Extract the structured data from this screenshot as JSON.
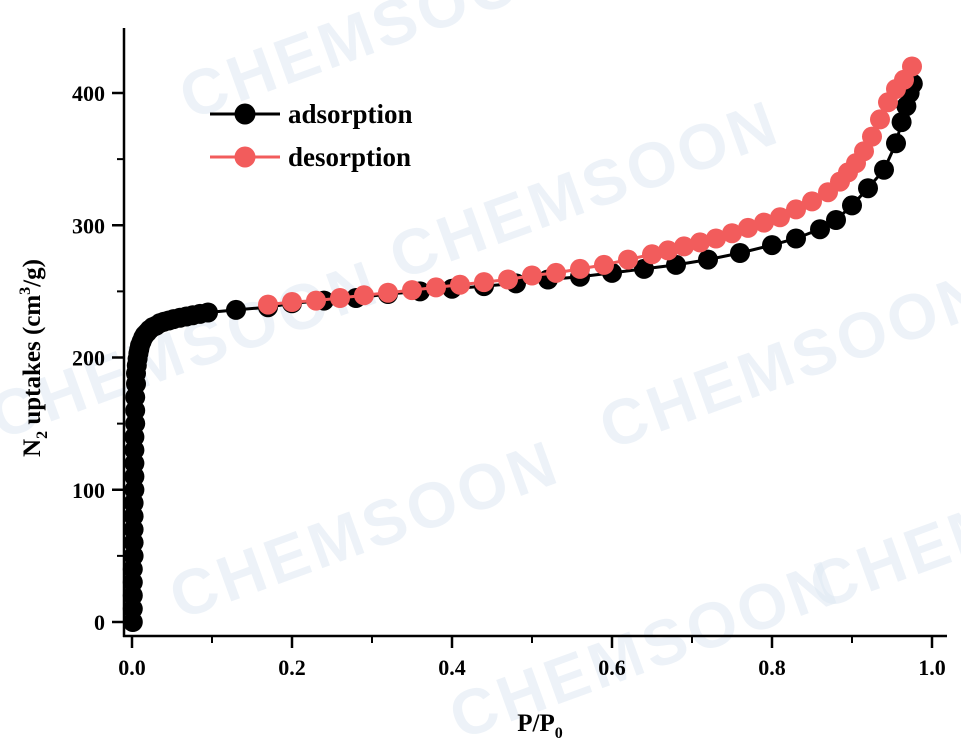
{
  "watermark": {
    "text": "CHEMSOON"
  },
  "chart_data": {
    "type": "scatter",
    "xlabel_main": "P/P",
    "xlabel_sub": "0",
    "ylabel_main": "N",
    "ylabel_sub": "2",
    "ylabel_mid": " uptakes (cm",
    "ylabel_sup": "3",
    "ylabel_end": "/g)",
    "xlim": [
      0.0,
      1.0
    ],
    "ylim": [
      0,
      450
    ],
    "xticks": [
      "0.0",
      "0.2",
      "0.4",
      "0.6",
      "0.8",
      "1.0"
    ],
    "yticks": [
      "0",
      "100",
      "200",
      "300",
      "400"
    ],
    "grid": false,
    "legend_position": "top-left",
    "series": [
      {
        "name": "adsorption",
        "color": "#000000",
        "x": [
          0.001,
          0.001,
          0.001,
          0.001,
          0.001,
          0.002,
          0.002,
          0.002,
          0.002,
          0.002,
          0.003,
          0.003,
          0.003,
          0.003,
          0.003,
          0.004,
          0.004,
          0.004,
          0.005,
          0.005,
          0.006,
          0.007,
          0.008,
          0.009,
          0.01,
          0.012,
          0.014,
          0.016,
          0.019,
          0.022,
          0.026,
          0.03,
          0.035,
          0.04,
          0.046,
          0.052,
          0.06,
          0.068,
          0.076,
          0.085,
          0.095,
          0.13,
          0.17,
          0.2,
          0.24,
          0.28,
          0.32,
          0.36,
          0.4,
          0.44,
          0.48,
          0.52,
          0.56,
          0.6,
          0.64,
          0.68,
          0.72,
          0.76,
          0.8,
          0.83,
          0.86,
          0.88,
          0.9,
          0.92,
          0.94,
          0.955,
          0.962,
          0.968,
          0.972,
          0.976
        ],
        "y": [
          0,
          10,
          20,
          30,
          40,
          50,
          60,
          70,
          80,
          90,
          100,
          110,
          120,
          130,
          140,
          150,
          160,
          170,
          180,
          188,
          194,
          199,
          203,
          206,
          209,
          212,
          215,
          217,
          219,
          221,
          223,
          224,
          226,
          227,
          228,
          229,
          230,
          231,
          232,
          233,
          234,
          236,
          238,
          241,
          243,
          245,
          248,
          250,
          252,
          254,
          256,
          259,
          261,
          264,
          267,
          270,
          274,
          279,
          285,
          290,
          297,
          304,
          315,
          328,
          342,
          362,
          378,
          390,
          400,
          407
        ]
      },
      {
        "name": "desorption",
        "color": "#f25c5c",
        "x": [
          0.975,
          0.965,
          0.955,
          0.945,
          0.935,
          0.925,
          0.915,
          0.905,
          0.895,
          0.885,
          0.87,
          0.85,
          0.83,
          0.81,
          0.79,
          0.77,
          0.75,
          0.73,
          0.71,
          0.69,
          0.67,
          0.65,
          0.62,
          0.59,
          0.56,
          0.53,
          0.5,
          0.47,
          0.44,
          0.41,
          0.38,
          0.35,
          0.32,
          0.29,
          0.26,
          0.23,
          0.2,
          0.17
        ],
        "y": [
          420,
          410,
          403,
          393,
          380,
          367,
          356,
          347,
          340,
          333,
          325,
          318,
          312,
          306,
          302,
          298,
          294,
          290,
          287,
          284,
          281,
          278,
          274,
          270,
          267,
          264,
          262,
          259,
          257,
          255,
          253,
          251,
          249,
          247,
          245,
          243,
          242,
          240
        ]
      }
    ]
  }
}
